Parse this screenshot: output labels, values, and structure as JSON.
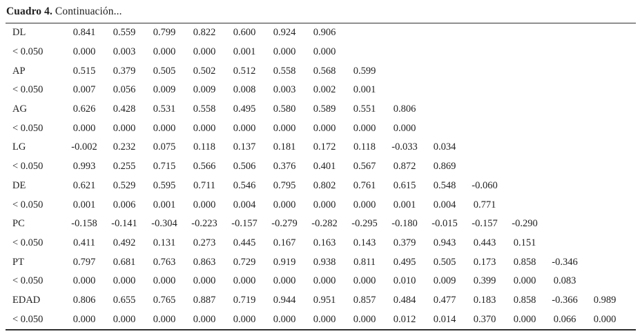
{
  "caption": {
    "label": "Cuadro 4.",
    "text": " Continuación..."
  },
  "colors": {
    "background": "#ffffff",
    "text": "#1f1f1f",
    "rule": "#2e2e2e"
  },
  "table": {
    "num_value_columns": 14,
    "rows": [
      {
        "label": "DL",
        "values": [
          "0.841",
          "0.559",
          "0.799",
          "0.822",
          "0.600",
          "0.924",
          "0.906"
        ]
      },
      {
        "label": "< 0.050",
        "values": [
          "0.000",
          "0.003",
          "0.000",
          "0.000",
          "0.001",
          "0.000",
          "0.000"
        ]
      },
      {
        "label": "AP",
        "values": [
          "0.515",
          "0.379",
          "0.505",
          "0.502",
          "0.512",
          "0.558",
          "0.568",
          "0.599"
        ]
      },
      {
        "label": "< 0.050",
        "values": [
          "0.007",
          "0.056",
          "0.009",
          "0.009",
          "0.008",
          "0.003",
          "0.002",
          "0.001"
        ]
      },
      {
        "label": "AG",
        "values": [
          "0.626",
          "0.428",
          "0.531",
          "0.558",
          "0.495",
          "0.580",
          "0.589",
          "0.551",
          "0.806"
        ]
      },
      {
        "label": "< 0.050",
        "values": [
          "0.000",
          "0.000",
          "0.000",
          "0.000",
          "0.000",
          "0.000",
          "0.000",
          "0.000",
          "0.000"
        ]
      },
      {
        "label": "LG",
        "values": [
          "-0.002",
          "0.232",
          "0.075",
          "0.118",
          "0.137",
          "0.181",
          "0.172",
          "0.118",
          "-0.033",
          "0.034"
        ]
      },
      {
        "label": "< 0.050",
        "values": [
          "0.993",
          "0.255",
          "0.715",
          "0.566",
          "0.506",
          "0.376",
          "0.401",
          "0.567",
          "0.872",
          "0.869"
        ]
      },
      {
        "label": "DE",
        "values": [
          "0.621",
          "0.529",
          "0.595",
          "0.711",
          "0.546",
          "0.795",
          "0.802",
          "0.761",
          "0.615",
          "0.548",
          "-0.060"
        ]
      },
      {
        "label": "< 0.050",
        "values": [
          "0.001",
          "0.006",
          "0.001",
          "0.000",
          "0.004",
          "0.000",
          "0.000",
          "0.000",
          "0.001",
          "0.004",
          "0.771"
        ]
      },
      {
        "label": "PC",
        "values": [
          "-0.158",
          "-0.141",
          "-0.304",
          "-0.223",
          "-0.157",
          "-0.279",
          "-0.282",
          "-0.295",
          "-0.180",
          "-0.015",
          "-0.157",
          "-0.290"
        ]
      },
      {
        "label": "< 0.050",
        "values": [
          "0.411",
          "0.492",
          "0.131",
          "0.273",
          "0.445",
          "0.167",
          "0.163",
          "0.143",
          "0.379",
          "0.943",
          "0.443",
          "0.151"
        ]
      },
      {
        "label": "PT",
        "values": [
          "0.797",
          "0.681",
          "0.763",
          "0.863",
          "0.729",
          "0.919",
          "0.938",
          "0.811",
          "0.495",
          "0.505",
          "0.173",
          "0.858",
          "-0.346"
        ]
      },
      {
        "label": "< 0.050",
        "values": [
          "0.000",
          "0.000",
          "0.000",
          "0.000",
          "0.000",
          "0.000",
          "0.000",
          "0.000",
          "0.010",
          "0.009",
          "0.399",
          "0.000",
          "0.083"
        ]
      },
      {
        "label": "EDAD",
        "values": [
          "0.806",
          "0.655",
          "0.765",
          "0.887",
          "0.719",
          "0.944",
          "0.951",
          "0.857",
          "0.484",
          "0.477",
          "0.183",
          "0.858",
          "-0.366",
          "0.989"
        ]
      },
      {
        "label": "< 0.050",
        "values": [
          "0.000",
          "0.000",
          "0.000",
          "0.000",
          "0.000",
          "0.000",
          "0.000",
          "0.000",
          "0.012",
          "0.014",
          "0.370",
          "0.000",
          "0.066",
          "0.000"
        ]
      }
    ]
  }
}
